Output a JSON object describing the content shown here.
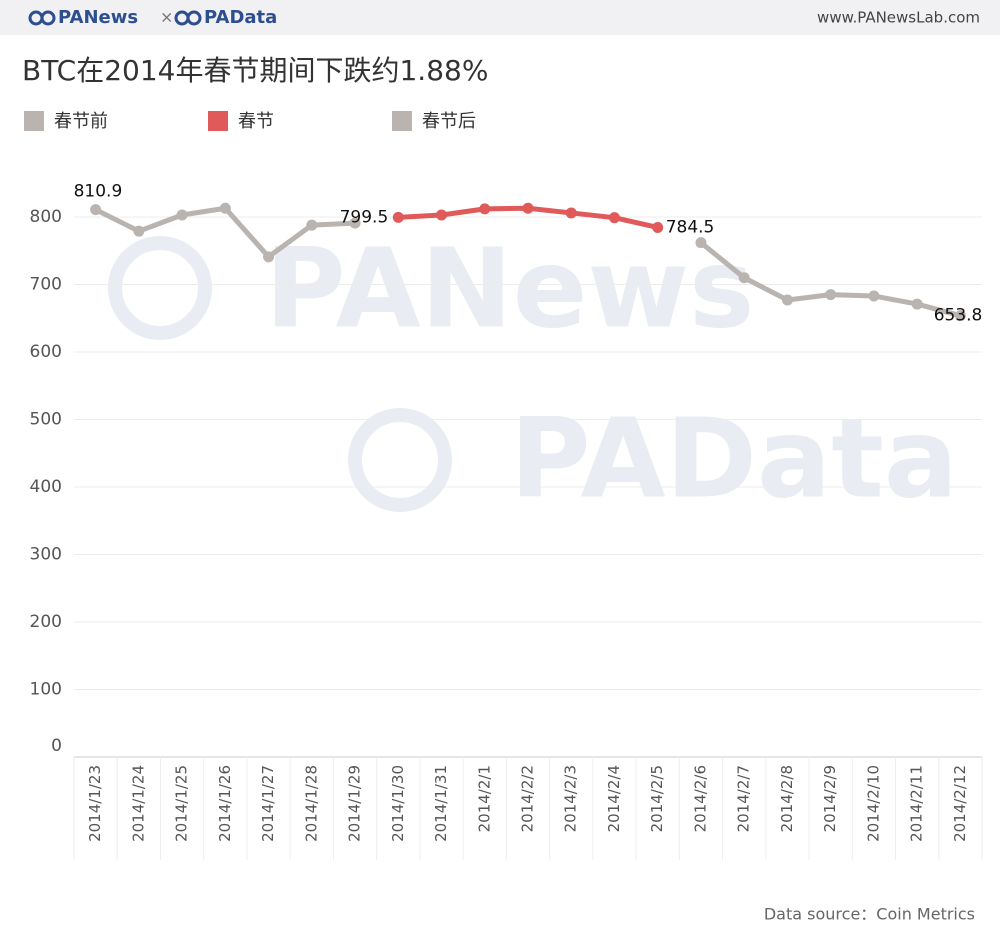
{
  "header": {
    "brand": "PANews",
    "separator": "×",
    "brand2": "PAData",
    "url": "www.PANewsLab.com"
  },
  "watermarks": [
    "PANews",
    "PAData"
  ],
  "source": "Data source：Coin Metrics",
  "chart_data": {
    "type": "line",
    "title": "BTC在2014年春节期间下跌约1.88%",
    "categories": [
      "2014/1/23",
      "2014/1/24",
      "2014/1/25",
      "2014/1/26",
      "2014/1/27",
      "2014/1/28",
      "2014/1/29",
      "2014/1/30",
      "2014/1/31",
      "2014/2/1",
      "2014/2/2",
      "2014/2/3",
      "2014/2/4",
      "2014/2/5",
      "2014/2/6",
      "2014/2/7",
      "2014/2/8",
      "2014/2/9",
      "2014/2/10",
      "2014/2/11",
      "2014/2/12"
    ],
    "series": [
      {
        "name": "春节前",
        "color": "#bab4b0",
        "labeled_points": [
          0
        ],
        "values": [
          810.9,
          779,
          803,
          813,
          741,
          788,
          791,
          null,
          null,
          null,
          null,
          null,
          null,
          null,
          null,
          null,
          null,
          null,
          null,
          null,
          null
        ]
      },
      {
        "name": "春节",
        "color": "#e05a5a",
        "labeled_points": [
          7,
          13
        ],
        "values": [
          null,
          null,
          null,
          null,
          null,
          null,
          null,
          799.5,
          803,
          812,
          813,
          806,
          799,
          784.5,
          null,
          null,
          null,
          null,
          null,
          null,
          null
        ]
      },
      {
        "name": "春节后",
        "color": "#bab4b0",
        "labeled_points": [
          20
        ],
        "values": [
          null,
          null,
          null,
          null,
          null,
          null,
          null,
          null,
          null,
          null,
          null,
          null,
          null,
          null,
          762,
          710,
          677,
          685,
          683,
          671,
          653.8
        ]
      }
    ],
    "ylim": [
      0,
      880
    ],
    "yticks": [
      0,
      100,
      200,
      300,
      400,
      500,
      600,
      700,
      800
    ],
    "grid": true
  }
}
